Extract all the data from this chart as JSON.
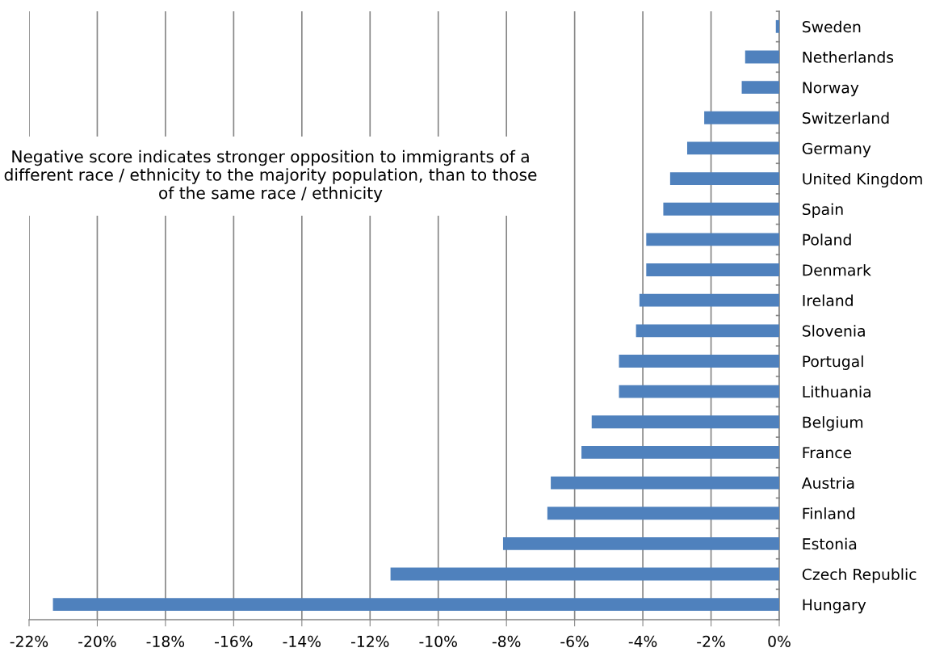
{
  "chart_data": {
    "type": "bar",
    "orientation": "horizontal",
    "categories": [
      "Sweden",
      "Netherlands",
      "Norway",
      "Switzerland",
      "Germany",
      "United Kingdom",
      "Spain",
      "Poland",
      "Denmark",
      "Ireland",
      "Slovenia",
      "Portugal",
      "Lithuania",
      "Belgium",
      "France",
      "Austria",
      "Finland",
      "Estonia",
      "Czech Republic",
      "Hungary"
    ],
    "values": [
      -0.1,
      -1.0,
      -1.1,
      -2.2,
      -2.7,
      -3.2,
      -3.4,
      -3.9,
      -3.9,
      -4.1,
      -4.2,
      -4.7,
      -4.7,
      -5.5,
      -5.8,
      -6.7,
      -6.8,
      -8.1,
      -11.4,
      -21.3
    ],
    "color": "#4f81bd",
    "xlim": [
      -22,
      0
    ],
    "xticks": [
      {
        "value": -22,
        "label": "-22%"
      },
      {
        "value": -20,
        "label": "-20%"
      },
      {
        "value": -18,
        "label": "-18%"
      },
      {
        "value": -16,
        "label": "-16%"
      },
      {
        "value": -14,
        "label": "-14%"
      },
      {
        "value": -12,
        "label": "-12%"
      },
      {
        "value": -10,
        "label": "-10%"
      },
      {
        "value": -8,
        "label": "-8%"
      },
      {
        "value": -6,
        "label": "-6%"
      },
      {
        "value": -4,
        "label": "-4%"
      },
      {
        "value": -2,
        "label": "-2%"
      },
      {
        "value": 0,
        "label": "0%"
      }
    ],
    "grid": "x",
    "annotations": [
      "Negative score indicates stronger opposition to immigrants of a different race / ethnicity to the majority population, than to those of the same race / ethnicity"
    ]
  }
}
